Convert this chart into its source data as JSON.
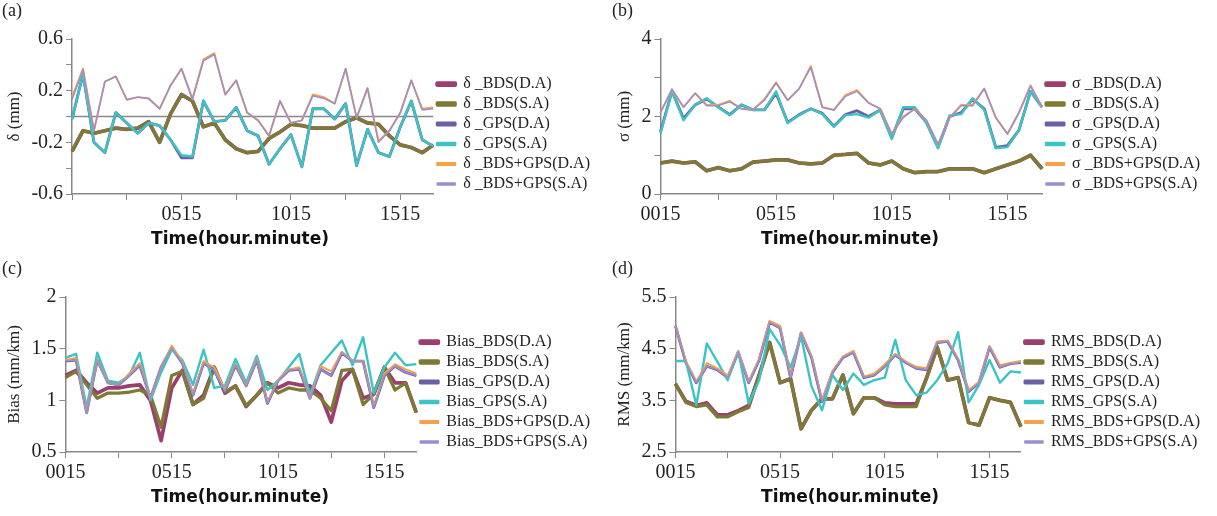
{
  "chart_data": [
    {
      "type": "line",
      "title": "(a)",
      "xlabel": "Time(hour.minute)",
      "ylabel": "δ (mm)",
      "categories": [
        null,
        null,
        null,
        null,
        null,
        null,
        null,
        null,
        null,
        null,
        "0515",
        null,
        null,
        null,
        null,
        null,
        null,
        null,
        null,
        null,
        "1015",
        null,
        null,
        null,
        null,
        null,
        null,
        null,
        null,
        null,
        "1515",
        null,
        null,
        null
      ],
      "ylim": [
        -0.6,
        0.6
      ],
      "yticks": [
        -0.6,
        {
          "value": -0.4,
          "label": null
        },
        -0.2,
        {
          "value": 0,
          "label": null
        },
        0.2,
        {
          "value": 0.4,
          "label": null
        },
        0.6
      ],
      "grid": false,
      "legend": "right",
      "marker": "none",
      "line_style": "solid",
      "ref_lines": [
        {
          "axis": "y",
          "value": 0,
          "color": "#888888"
        }
      ],
      "series": [
        {
          "name": "δ _BDS(D.A)",
          "color": "#9b3f6e",
          "values": [
            -0.27,
            -0.11,
            -0.13,
            -0.11,
            -0.09,
            -0.1,
            -0.09,
            -0.04,
            -0.2,
            0.02,
            0.17,
            0.12,
            -0.08,
            -0.05,
            -0.18,
            -0.25,
            -0.28,
            -0.27,
            -0.17,
            -0.12,
            -0.06,
            -0.07,
            -0.09,
            -0.09,
            -0.09,
            -0.04,
            -0.01,
            -0.05,
            -0.06,
            -0.15,
            -0.22,
            -0.24,
            -0.28,
            -0.22
          ]
        },
        {
          "name": "δ _BDS(S.A)",
          "color": "#7d7a35",
          "values": [
            -0.27,
            -0.11,
            -0.13,
            -0.11,
            -0.09,
            -0.1,
            -0.09,
            -0.04,
            -0.2,
            0.02,
            0.17,
            0.12,
            -0.08,
            -0.05,
            -0.18,
            -0.25,
            -0.28,
            -0.27,
            -0.17,
            -0.12,
            -0.06,
            -0.07,
            -0.09,
            -0.09,
            -0.09,
            -0.04,
            -0.01,
            -0.05,
            -0.06,
            -0.15,
            -0.22,
            -0.24,
            -0.28,
            -0.22
          ]
        },
        {
          "name": "δ _GPS(D.A)",
          "color": "#6b5fa8",
          "values": [
            -0.02,
            0.33,
            -0.2,
            -0.28,
            0.03,
            -0.05,
            -0.13,
            -0.05,
            -0.07,
            -0.18,
            -0.32,
            -0.32,
            0.12,
            -0.04,
            -0.03,
            0.07,
            -0.11,
            -0.15,
            -0.37,
            -0.25,
            -0.14,
            -0.39,
            0.06,
            0.06,
            -0.02,
            0.1,
            -0.38,
            -0.1,
            -0.28,
            -0.31,
            -0.08,
            0.12,
            -0.18,
            -0.23
          ]
        },
        {
          "name": "δ _GPS(S.A)",
          "color": "#3cc4c4",
          "values": [
            -0.02,
            0.33,
            -0.2,
            -0.28,
            0.03,
            -0.05,
            -0.13,
            -0.05,
            -0.07,
            -0.18,
            -0.3,
            -0.31,
            0.12,
            -0.04,
            -0.03,
            0.07,
            -0.11,
            -0.15,
            -0.37,
            -0.25,
            -0.14,
            -0.39,
            0.06,
            0.06,
            -0.02,
            0.1,
            -0.38,
            -0.1,
            -0.28,
            -0.31,
            -0.08,
            0.12,
            -0.18,
            -0.23
          ]
        },
        {
          "name": "δ _BDS+GPS(D.A)",
          "color": "#f5a04a",
          "values": [
            0.15,
            0.37,
            -0.11,
            0.27,
            0.31,
            0.13,
            0.15,
            0.14,
            0.06,
            0.24,
            0.37,
            0.14,
            0.44,
            0.49,
            0.17,
            0.28,
            0.03,
            -0.03,
            -0.15,
            0.12,
            -0.05,
            -0.03,
            0.17,
            0.15,
            0.1,
            0.37,
            -0.01,
            0.22,
            -0.19,
            -0.11,
            0.03,
            0.28,
            0.06,
            0.07
          ]
        },
        {
          "name": "δ _BDS+GPS(S.A)",
          "color": "#9a8fd0",
          "values": [
            0.13,
            0.36,
            -0.11,
            0.27,
            0.31,
            0.13,
            0.15,
            0.14,
            0.06,
            0.24,
            0.37,
            0.13,
            0.43,
            0.48,
            0.17,
            0.28,
            0.03,
            -0.03,
            -0.15,
            0.12,
            -0.05,
            -0.03,
            0.16,
            0.14,
            0.1,
            0.37,
            -0.01,
            0.22,
            -0.2,
            -0.11,
            0.03,
            0.28,
            0.05,
            0.06
          ]
        }
      ]
    },
    {
      "type": "line",
      "title": "(b)",
      "xlabel": "Time(hour.minute)",
      "ylabel": "σ (mm)",
      "categories": [
        "0015",
        null,
        null,
        null,
        null,
        null,
        null,
        null,
        null,
        null,
        "0515",
        null,
        null,
        null,
        null,
        null,
        null,
        null,
        null,
        null,
        "1015",
        null,
        null,
        null,
        null,
        null,
        null,
        null,
        null,
        null,
        "1515",
        null,
        null,
        null
      ],
      "ylim": [
        0,
        4
      ],
      "yticks": [
        0,
        {
          "value": 1,
          "label": null
        },
        2,
        {
          "value": 3,
          "label": null
        },
        4
      ],
      "grid": false,
      "legend": "right",
      "marker": "none",
      "line_style": "solid",
      "series": [
        {
          "name": "σ _BDS(D.A)",
          "color": "#9b3f6e",
          "values": [
            0.8,
            0.85,
            0.8,
            0.83,
            0.6,
            0.68,
            0.6,
            0.65,
            0.82,
            0.85,
            0.88,
            0.88,
            0.8,
            0.78,
            0.8,
            1.0,
            1.02,
            1.05,
            0.8,
            0.75,
            0.85,
            0.65,
            0.55,
            0.58,
            0.58,
            0.65,
            0.65,
            0.65,
            0.55,
            0.65,
            0.75,
            0.85,
            1.0,
            0.65
          ]
        },
        {
          "name": "σ _BDS(S.A)",
          "color": "#7d7a35",
          "values": [
            0.8,
            0.85,
            0.8,
            0.83,
            0.6,
            0.68,
            0.6,
            0.65,
            0.82,
            0.85,
            0.88,
            0.88,
            0.8,
            0.78,
            0.8,
            1.0,
            1.02,
            1.05,
            0.8,
            0.75,
            0.85,
            0.65,
            0.55,
            0.58,
            0.58,
            0.65,
            0.65,
            0.65,
            0.55,
            0.65,
            0.75,
            0.85,
            1.0,
            0.65
          ]
        },
        {
          "name": "σ _GPS(D.A)",
          "color": "#6b5fa8",
          "values": [
            1.6,
            2.65,
            1.95,
            2.3,
            2.45,
            2.25,
            2.05,
            2.3,
            2.17,
            2.17,
            2.6,
            1.85,
            2.05,
            2.2,
            2.08,
            1.75,
            2.05,
            2.15,
            2.0,
            2.17,
            1.45,
            2.2,
            2.2,
            1.85,
            1.2,
            2.0,
            2.1,
            2.45,
            2.2,
            1.2,
            1.25,
            1.65,
            2.65,
            2.24
          ]
        },
        {
          "name": "σ _GPS(S.A)",
          "color": "#3cc4c4",
          "values": [
            1.55,
            2.65,
            1.9,
            2.3,
            2.47,
            2.24,
            2.03,
            2.3,
            2.17,
            2.17,
            2.65,
            1.83,
            2.03,
            2.2,
            2.06,
            1.73,
            2.03,
            2.06,
            1.97,
            2.17,
            1.42,
            2.24,
            2.24,
            1.83,
            1.18,
            2.03,
            2.06,
            2.47,
            2.17,
            1.18,
            1.21,
            1.65,
            2.65,
            2.24
          ]
        },
        {
          "name": "σ _BDS+GPS(D.A)",
          "color": "#f5a04a",
          "values": [
            2.1,
            2.7,
            2.24,
            2.6,
            2.3,
            2.3,
            2.4,
            2.2,
            2.17,
            2.45,
            2.88,
            2.42,
            2.72,
            3.3,
            2.24,
            2.17,
            2.55,
            2.68,
            2.35,
            2.2,
            1.55,
            2.0,
            2.2,
            1.9,
            1.28,
            1.97,
            2.3,
            2.3,
            2.72,
            1.97,
            1.55,
            2.1,
            2.8,
            2.24
          ]
        },
        {
          "name": "σ _BDS+GPS(S.A)",
          "color": "#9a8fd0",
          "values": [
            2.1,
            2.7,
            2.24,
            2.6,
            2.28,
            2.28,
            2.38,
            2.2,
            2.17,
            2.42,
            2.86,
            2.42,
            2.72,
            3.27,
            2.24,
            2.17,
            2.52,
            2.65,
            2.35,
            2.2,
            1.55,
            1.97,
            2.2,
            1.9,
            1.28,
            1.97,
            2.28,
            2.28,
            2.72,
            1.97,
            1.55,
            2.1,
            2.79,
            2.24
          ]
        }
      ]
    },
    {
      "type": "line",
      "title": "(c)",
      "xlabel": "Time(hour.minute)",
      "ylabel": "Bias (mm/km)",
      "categories": [
        "0015",
        null,
        null,
        null,
        null,
        null,
        null,
        null,
        null,
        null,
        "0515",
        null,
        null,
        null,
        null,
        null,
        null,
        null,
        null,
        null,
        "1015",
        null,
        null,
        null,
        null,
        null,
        null,
        null,
        null,
        null,
        "1515",
        null,
        null,
        null
      ],
      "ylim": [
        0.5,
        2
      ],
      "yticks": [
        0.5,
        1,
        1.5,
        2
      ],
      "grid": false,
      "legend": "right",
      "marker": "none",
      "line_style": "solid",
      "series": [
        {
          "name": "Bias_BDS(D.A)",
          "color": "#9b3f6e",
          "values": [
            1.24,
            1.29,
            1.17,
            1.07,
            1.12,
            1.12,
            1.14,
            1.15,
            1.0,
            0.61,
            1.12,
            1.29,
            0.96,
            1.05,
            1.32,
            1.07,
            1.14,
            0.94,
            1.05,
            1.17,
            1.12,
            1.17,
            1.15,
            1.14,
            1.05,
            0.79,
            1.19,
            1.3,
            1.02,
            1.06,
            1.32,
            1.17,
            1.17,
            0.88
          ]
        },
        {
          "name": "Bias_BDS(S.A)",
          "color": "#7d7a35",
          "values": [
            1.22,
            1.28,
            1.15,
            1.02,
            1.07,
            1.07,
            1.08,
            1.1,
            1.05,
            0.74,
            1.24,
            1.28,
            0.96,
            1.02,
            1.32,
            1.08,
            1.14,
            0.95,
            1.05,
            1.17,
            1.07,
            1.12,
            1.1,
            1.1,
            1.02,
            0.9,
            1.29,
            1.3,
            0.96,
            1.06,
            1.32,
            1.1,
            1.17,
            0.88
          ]
        },
        {
          "name": "Bias_GPS(D.A)",
          "color": "#6b5fa8",
          "values": [
            1.38,
            1.39,
            0.88,
            1.39,
            1.17,
            1.15,
            1.24,
            1.34,
            1.02,
            1.32,
            1.51,
            1.36,
            1.05,
            1.36,
            1.29,
            1.09,
            1.34,
            1.14,
            1.39,
            0.97,
            1.19,
            1.29,
            1.3,
            1.02,
            1.3,
            1.24,
            1.46,
            1.38,
            1.38,
            0.93,
            1.24,
            1.33,
            1.27,
            1.24
          ]
        },
        {
          "name": "Bias_GPS(S.A)",
          "color": "#3cc4c4",
          "values": [
            1.41,
            1.45,
            0.93,
            1.46,
            1.19,
            1.17,
            1.24,
            1.46,
            1.0,
            1.27,
            1.49,
            1.39,
            1.15,
            1.49,
            1.12,
            1.14,
            1.4,
            1.17,
            1.43,
            1.1,
            1.19,
            1.32,
            1.45,
            1.05,
            1.34,
            1.46,
            1.58,
            1.34,
            1.61,
            1.07,
            1.32,
            1.46,
            1.34,
            1.35
          ]
        },
        {
          "name": "Bias_BDS+GPS(D.A)",
          "color": "#f5a04a",
          "values": [
            1.39,
            1.41,
            0.88,
            1.39,
            1.17,
            1.15,
            1.26,
            1.36,
            1.02,
            1.32,
            1.53,
            1.37,
            1.06,
            1.38,
            1.32,
            1.1,
            1.35,
            1.14,
            1.4,
            0.98,
            1.2,
            1.3,
            1.32,
            1.02,
            1.33,
            1.28,
            1.47,
            1.38,
            1.38,
            0.94,
            1.26,
            1.35,
            1.3,
            1.26
          ]
        },
        {
          "name": "Bias_BDS+GPS(S.A)",
          "color": "#9a8fd0",
          "values": [
            1.38,
            1.39,
            0.88,
            1.39,
            1.17,
            1.15,
            1.24,
            1.34,
            1.02,
            1.32,
            1.51,
            1.36,
            1.05,
            1.36,
            1.29,
            1.09,
            1.34,
            1.14,
            1.39,
            0.97,
            1.19,
            1.29,
            1.3,
            1.02,
            1.3,
            1.24,
            1.46,
            1.38,
            1.38,
            0.93,
            1.24,
            1.33,
            1.27,
            1.24
          ]
        }
      ]
    },
    {
      "type": "line",
      "title": "(d)",
      "xlabel": "Time(hour.minute)",
      "ylabel": "RMS (mm/km)",
      "categories": [
        "0015",
        null,
        null,
        null,
        null,
        null,
        null,
        null,
        null,
        null,
        "0515",
        null,
        null,
        null,
        null,
        null,
        null,
        null,
        null,
        null,
        "1015",
        null,
        null,
        null,
        null,
        null,
        null,
        null,
        null,
        null,
        "1515",
        null,
        null,
        null
      ],
      "ylim": [
        2.5,
        5.5
      ],
      "yticks": [
        2.5,
        3.5,
        4.5,
        5.5
      ],
      "grid": false,
      "legend": "right",
      "marker": "none",
      "line_style": "solid",
      "series": [
        {
          "name": "RMS_BDS(D.A)",
          "color": "#9b3f6e",
          "values": [
            3.82,
            3.48,
            3.4,
            3.45,
            3.22,
            3.22,
            3.3,
            3.4,
            3.99,
            4.62,
            3.84,
            3.92,
            2.95,
            3.31,
            3.53,
            3.53,
            3.99,
            3.24,
            3.55,
            3.55,
            3.45,
            3.43,
            3.43,
            3.43,
            3.94,
            4.53,
            3.89,
            3.94,
            3.07,
            3.02,
            3.55,
            3.5,
            3.46,
            2.99
          ]
        },
        {
          "name": "RMS_BDS(S.A)",
          "color": "#7d7a35",
          "values": [
            3.82,
            3.46,
            3.38,
            3.41,
            3.18,
            3.18,
            3.28,
            3.36,
            3.99,
            4.62,
            3.84,
            3.92,
            2.95,
            3.31,
            3.53,
            3.53,
            3.99,
            3.24,
            3.55,
            3.55,
            3.41,
            3.38,
            3.38,
            3.38,
            3.94,
            4.53,
            3.89,
            3.94,
            3.07,
            3.02,
            3.55,
            3.5,
            3.46,
            2.99
          ]
        },
        {
          "name": "RMS_GPS(D.A)",
          "color": "#6b5fa8",
          "values": [
            4.94,
            4.23,
            3.84,
            4.16,
            4.09,
            3.94,
            4.43,
            3.84,
            4.28,
            5.01,
            4.9,
            3.94,
            4.8,
            4.33,
            3.47,
            4.04,
            4.33,
            4.43,
            3.94,
            3.99,
            4.16,
            4.38,
            4.23,
            4.12,
            4.09,
            4.62,
            4.64,
            4.28,
            3.67,
            3.84,
            4.53,
            4.14,
            4.21,
            4.23
          ]
        },
        {
          "name": "RMS_GPS(S.A)",
          "color": "#3cc4c4",
          "values": [
            4.26,
            4.26,
            3.41,
            4.6,
            4.25,
            3.89,
            4.45,
            3.44,
            3.89,
            4.88,
            4.57,
            4.14,
            4.74,
            3.77,
            3.31,
            3.99,
            3.7,
            4.02,
            3.8,
            3.89,
            3.94,
            4.67,
            3.89,
            3.6,
            3.65,
            3.89,
            4.21,
            4.82,
            3.46,
            3.8,
            4.28,
            3.84,
            4.06,
            4.04
          ]
        },
        {
          "name": "RMS_BDS+GPS(D.A)",
          "color": "#f5a04a",
          "values": [
            4.94,
            4.26,
            3.86,
            4.22,
            4.12,
            3.98,
            4.45,
            3.86,
            4.3,
            5.04,
            4.94,
            3.96,
            4.82,
            4.36,
            3.5,
            4.06,
            4.35,
            4.46,
            3.96,
            4.02,
            4.2,
            4.4,
            4.25,
            4.15,
            4.12,
            4.64,
            4.66,
            4.3,
            3.7,
            3.86,
            4.55,
            4.18,
            4.23,
            4.26
          ]
        },
        {
          "name": "RMS_BDS+GPS(S.A)",
          "color": "#9a8fd0",
          "values": [
            4.94,
            4.23,
            3.84,
            4.16,
            4.09,
            3.94,
            4.43,
            3.84,
            4.28,
            5.01,
            4.9,
            3.94,
            4.8,
            4.33,
            3.47,
            4.04,
            4.33,
            4.43,
            3.94,
            3.99,
            4.16,
            4.38,
            4.23,
            4.12,
            4.09,
            4.62,
            4.64,
            4.28,
            3.67,
            3.84,
            4.53,
            4.14,
            4.21,
            4.23
          ]
        }
      ]
    }
  ]
}
